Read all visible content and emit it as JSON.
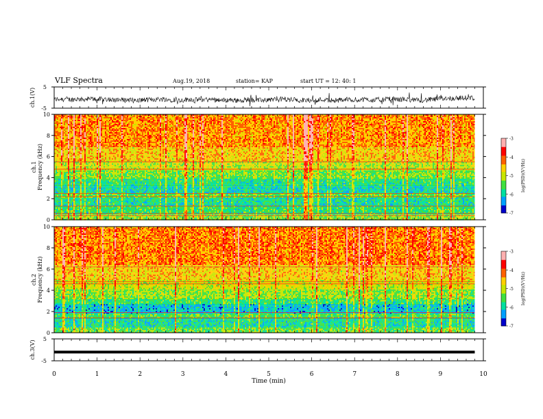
{
  "header": {
    "title": "VLF Spectra",
    "date": "Aug.19, 2018",
    "station": "station= KAP",
    "start_time": "start  UT =   12: 40: 1"
  },
  "colors": {
    "colormap": [
      "#000000",
      "#0000cc",
      "#00a0ff",
      "#00e0a0",
      "#40e040",
      "#c8e600",
      "#ffd000",
      "#ff6000",
      "#ff0000",
      "#ffb0b0",
      "#ffffff"
    ],
    "waveform": "#000000"
  },
  "chart_data": [
    {
      "type": "line",
      "name": "ch1-waveform",
      "ylabel": "ch.1(V)",
      "yticks": [
        "5",
        "-5"
      ],
      "ylim": [
        -5,
        5
      ],
      "xlim": [
        0,
        10
      ],
      "note_values": "noisy waveform around -1 V, amplitude about 1.5 V"
    },
    {
      "type": "heatmap",
      "name": "ch1-spectrogram",
      "ylabel_line1": "ch.1",
      "ylabel_line2": "Frequency (kHz)",
      "yticks": [
        "0",
        "2",
        "4",
        "6",
        "8",
        "10"
      ],
      "ylim": [
        0,
        10
      ],
      "xlim": [
        0,
        9.8
      ],
      "colorbar": {
        "label": "log(PSD)(V²/Hz)",
        "ticks": [
          "-3",
          "-4",
          "-5",
          "-6",
          "-7"
        ],
        "range": [
          -7,
          -3
        ]
      },
      "bands_khz": [
        [
          0.0,
          0.6,
          -5.2
        ],
        [
          0.6,
          1.3,
          -5.6
        ],
        [
          1.3,
          2.2,
          -5.8
        ],
        [
          2.2,
          2.6,
          -5.4
        ],
        [
          2.6,
          3.3,
          -5.9
        ],
        [
          3.3,
          4.0,
          -5.7
        ],
        [
          4.0,
          4.8,
          -5.3
        ],
        [
          4.8,
          5.6,
          -5.0
        ],
        [
          5.6,
          7.0,
          -4.6
        ],
        [
          7.0,
          10.0,
          -4.3
        ]
      ],
      "lines_khz": [
        0.4,
        0.6,
        1.3,
        2.2,
        2.5,
        4.8,
        5.5
      ]
    },
    {
      "type": "heatmap",
      "name": "ch2-spectrogram",
      "ylabel_line1": "ch.2",
      "ylabel_line2": "Frequency (kHz)",
      "yticks": [
        "0",
        "2",
        "4",
        "6",
        "8",
        "10"
      ],
      "ylim": [
        0,
        10
      ],
      "xlim": [
        0,
        9.8
      ],
      "colorbar": {
        "label": "log(PSD)(V²/Hz)",
        "ticks": [
          "-3",
          "-4",
          "-5",
          "-6",
          "-7"
        ],
        "range": [
          -7,
          -3
        ]
      },
      "bands_khz": [
        [
          0.0,
          0.5,
          -5.4
        ],
        [
          0.5,
          1.4,
          -5.8
        ],
        [
          1.4,
          1.9,
          -5.5
        ],
        [
          1.9,
          2.7,
          -6.1
        ],
        [
          2.7,
          3.2,
          -5.6
        ],
        [
          3.2,
          4.2,
          -5.2
        ],
        [
          4.2,
          5.0,
          -4.9
        ],
        [
          5.0,
          6.5,
          -4.6
        ],
        [
          6.5,
          10.0,
          -4.2
        ]
      ],
      "lines_khz": [
        1.4,
        1.9,
        4.6,
        4.8,
        6.2
      ]
    },
    {
      "type": "line",
      "name": "ch3-waveform",
      "ylabel": "ch.3(V)",
      "yticks": [
        "5",
        "-5"
      ],
      "ylim": [
        -5,
        5
      ],
      "xlim": [
        0,
        10
      ],
      "xlabel": "Time (min)",
      "xticks": [
        "0",
        "1",
        "2",
        "3",
        "4",
        "5",
        "6",
        "7",
        "8",
        "9",
        "10"
      ],
      "y_value": -1.0
    }
  ]
}
